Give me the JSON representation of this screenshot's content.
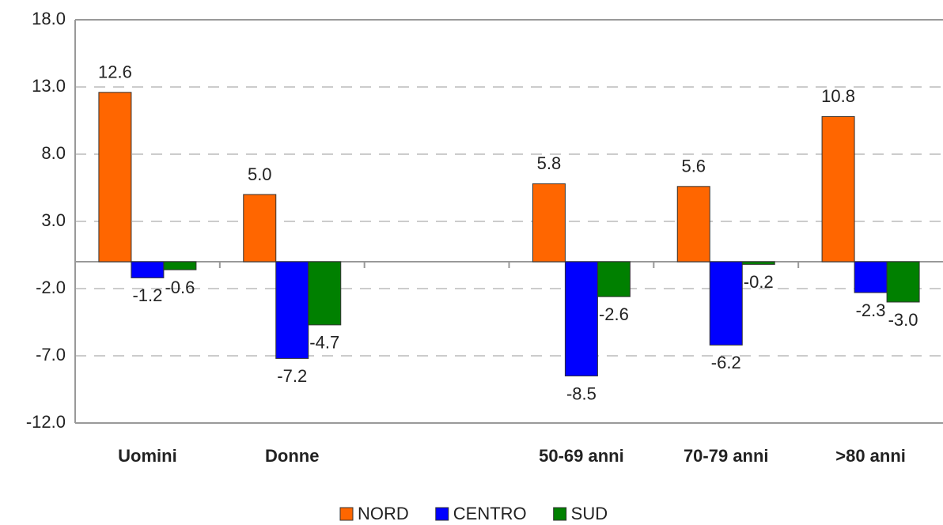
{
  "chart_data": {
    "type": "bar",
    "categories": [
      "Uomini",
      "Donne",
      null,
      "50-69 anni",
      "70-79 anni",
      ">80 anni"
    ],
    "series": [
      {
        "name": "NORD",
        "color": "#ff6600",
        "values": [
          12.6,
          5.0,
          null,
          5.8,
          5.6,
          10.8
        ],
        "value_labels": [
          "12.6",
          "5.0",
          null,
          "5.8",
          "5.6",
          "10.8"
        ]
      },
      {
        "name": "CENTRO",
        "color": "#0000ff",
        "values": [
          -1.2,
          -7.2,
          null,
          -8.5,
          -6.2,
          -2.3
        ],
        "value_labels": [
          "-1.2",
          "-7.2",
          null,
          "-8.5",
          "-6.2",
          "-2.3"
        ]
      },
      {
        "name": "SUD",
        "color": "#008000",
        "values": [
          -0.6,
          -4.7,
          null,
          -2.6,
          -0.2,
          -3.0
        ],
        "value_labels": [
          "-0.6",
          "-4.7",
          null,
          "-2.6",
          "-0.2",
          "-3.0"
        ]
      }
    ],
    "ylim": [
      -12,
      18
    ],
    "yticks": [
      {
        "value": -12,
        "label": "-12.0"
      },
      {
        "value": -7,
        "label": "-7.0"
      },
      {
        "value": -2,
        "label": "-2.0"
      },
      {
        "value": 3,
        "label": "3.0"
      },
      {
        "value": 8,
        "label": "8.0"
      },
      {
        "value": 13,
        "label": "13.0"
      },
      {
        "value": 18,
        "label": "18.0"
      }
    ],
    "grid": true,
    "legend": "bottom"
  }
}
